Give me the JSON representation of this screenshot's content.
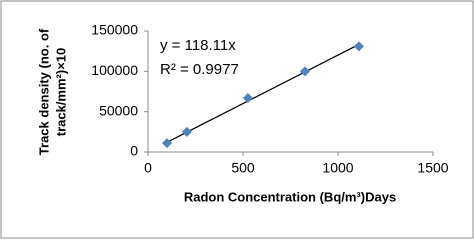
{
  "chart_data": {
    "type": "scatter",
    "xlabel": "Radon Concentration (Bq/m³)Days",
    "ylabel": [
      "Track density (no. of",
      "track/mm²)×10"
    ],
    "annotations": [
      "y = 118.11x",
      "R² = 0.9977"
    ],
    "series": [
      {
        "name": "Track density",
        "color": "#4f81bd",
        "x": [
          100,
          205,
          526,
          826,
          1110
        ],
        "values": [
          11000,
          25000,
          67000,
          100000,
          131000
        ]
      }
    ],
    "xlim": [
      0,
      1500
    ],
    "xticks": [
      0,
      500,
      1000,
      1500
    ],
    "ylim": [
      0,
      150000
    ],
    "yticks": [
      0,
      50000,
      100000,
      150000
    ],
    "trendline": true,
    "grid": false
  }
}
